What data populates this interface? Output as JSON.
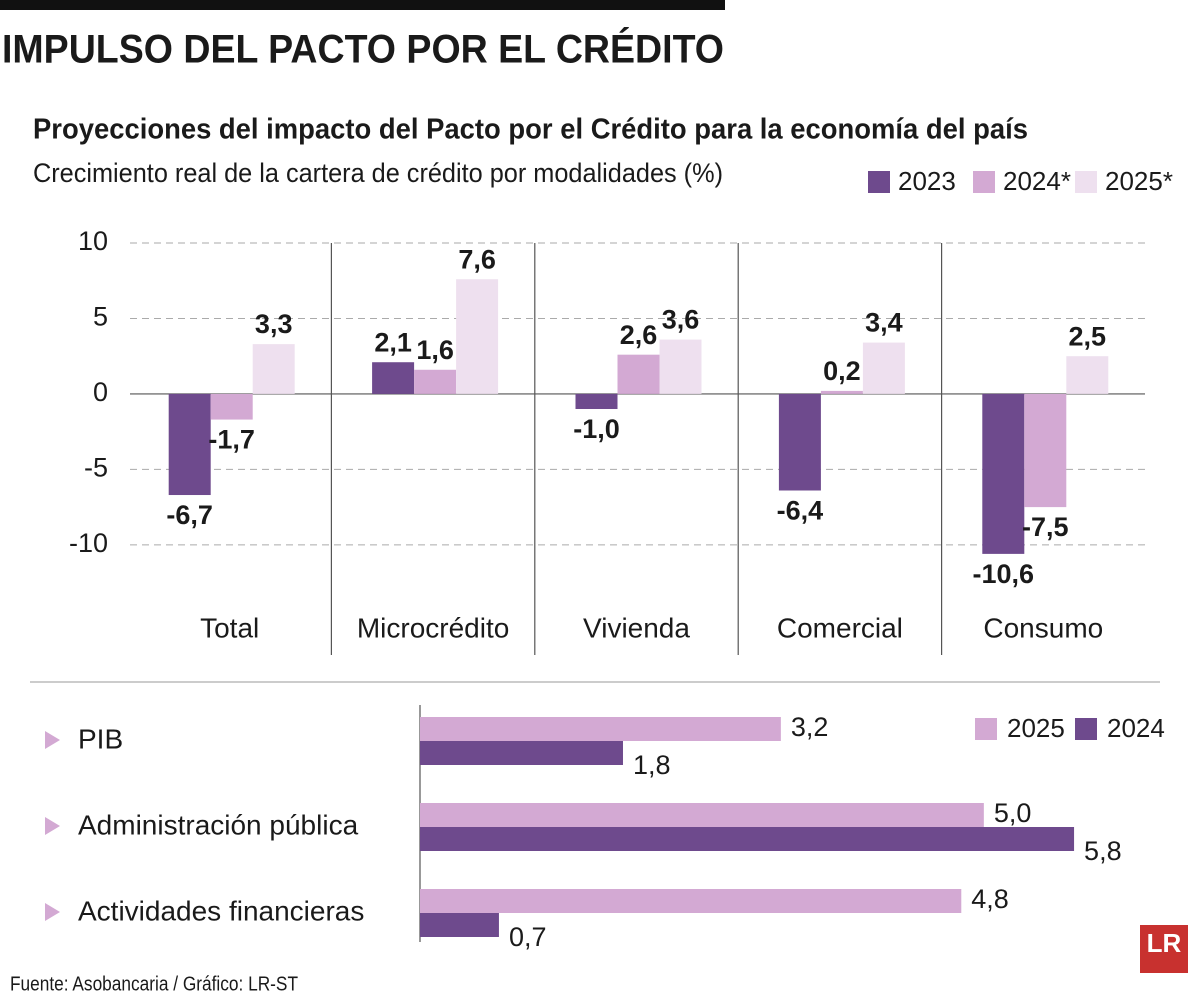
{
  "header": {
    "title": "IMPULSO DEL PACTO POR EL CRÉDITO"
  },
  "chart_data": [
    {
      "type": "bar",
      "title": "Proyecciones del impacto del Pacto por el Crédito para la economía del país",
      "subtitle": "Crecimiento real de la cartera de crédito por modalidades (%)",
      "categories": [
        "Total",
        "Microcrédito",
        "Vivienda",
        "Comercial",
        "Consumo"
      ],
      "series": [
        {
          "name": "2023",
          "color": "#6e4a8d",
          "values": [
            -6.7,
            2.1,
            -1.0,
            -6.4,
            -10.6
          ],
          "value_labels": [
            "-6,7",
            "2,1",
            "-1,0",
            "-6,4",
            "-10,6"
          ]
        },
        {
          "name": "2024*",
          "color": "#d3a9d3",
          "values": [
            -1.7,
            1.6,
            2.6,
            0.2,
            -7.5
          ],
          "value_labels": [
            "-1,7",
            "1,6",
            "2,6",
            "0,2",
            "-7,5"
          ]
        },
        {
          "name": "2025*",
          "color": "#eee0ef",
          "values": [
            3.3,
            7.6,
            3.6,
            3.4,
            2.5
          ],
          "value_labels": [
            "3,3",
            "7,6",
            "3,6",
            "3,4",
            "2,5"
          ]
        }
      ],
      "ylim": [
        -17.3,
        10
      ],
      "yticks": [
        10,
        5,
        0,
        -5,
        -10
      ],
      "grid": true,
      "legend": "top-right"
    },
    {
      "type": "barh",
      "categories": [
        "PIB",
        "Administración pública",
        "Actividades financieras"
      ],
      "series": [
        {
          "name": "2025",
          "color": "#d3a9d3",
          "values": [
            3.2,
            5.0,
            4.8
          ],
          "value_labels": [
            "3,2",
            "5,0",
            "4,8"
          ]
        },
        {
          "name": "2024",
          "color": "#6e4a8d",
          "values": [
            1.8,
            5.8,
            0.7
          ],
          "value_labels": [
            "1,8",
            "5,8",
            "0,7"
          ]
        }
      ],
      "xlim": [
        0,
        6.5
      ],
      "legend": "top-right"
    }
  ],
  "source": "Fuente: Asobancaria / Gráfico: LR-ST",
  "logo": "LR"
}
